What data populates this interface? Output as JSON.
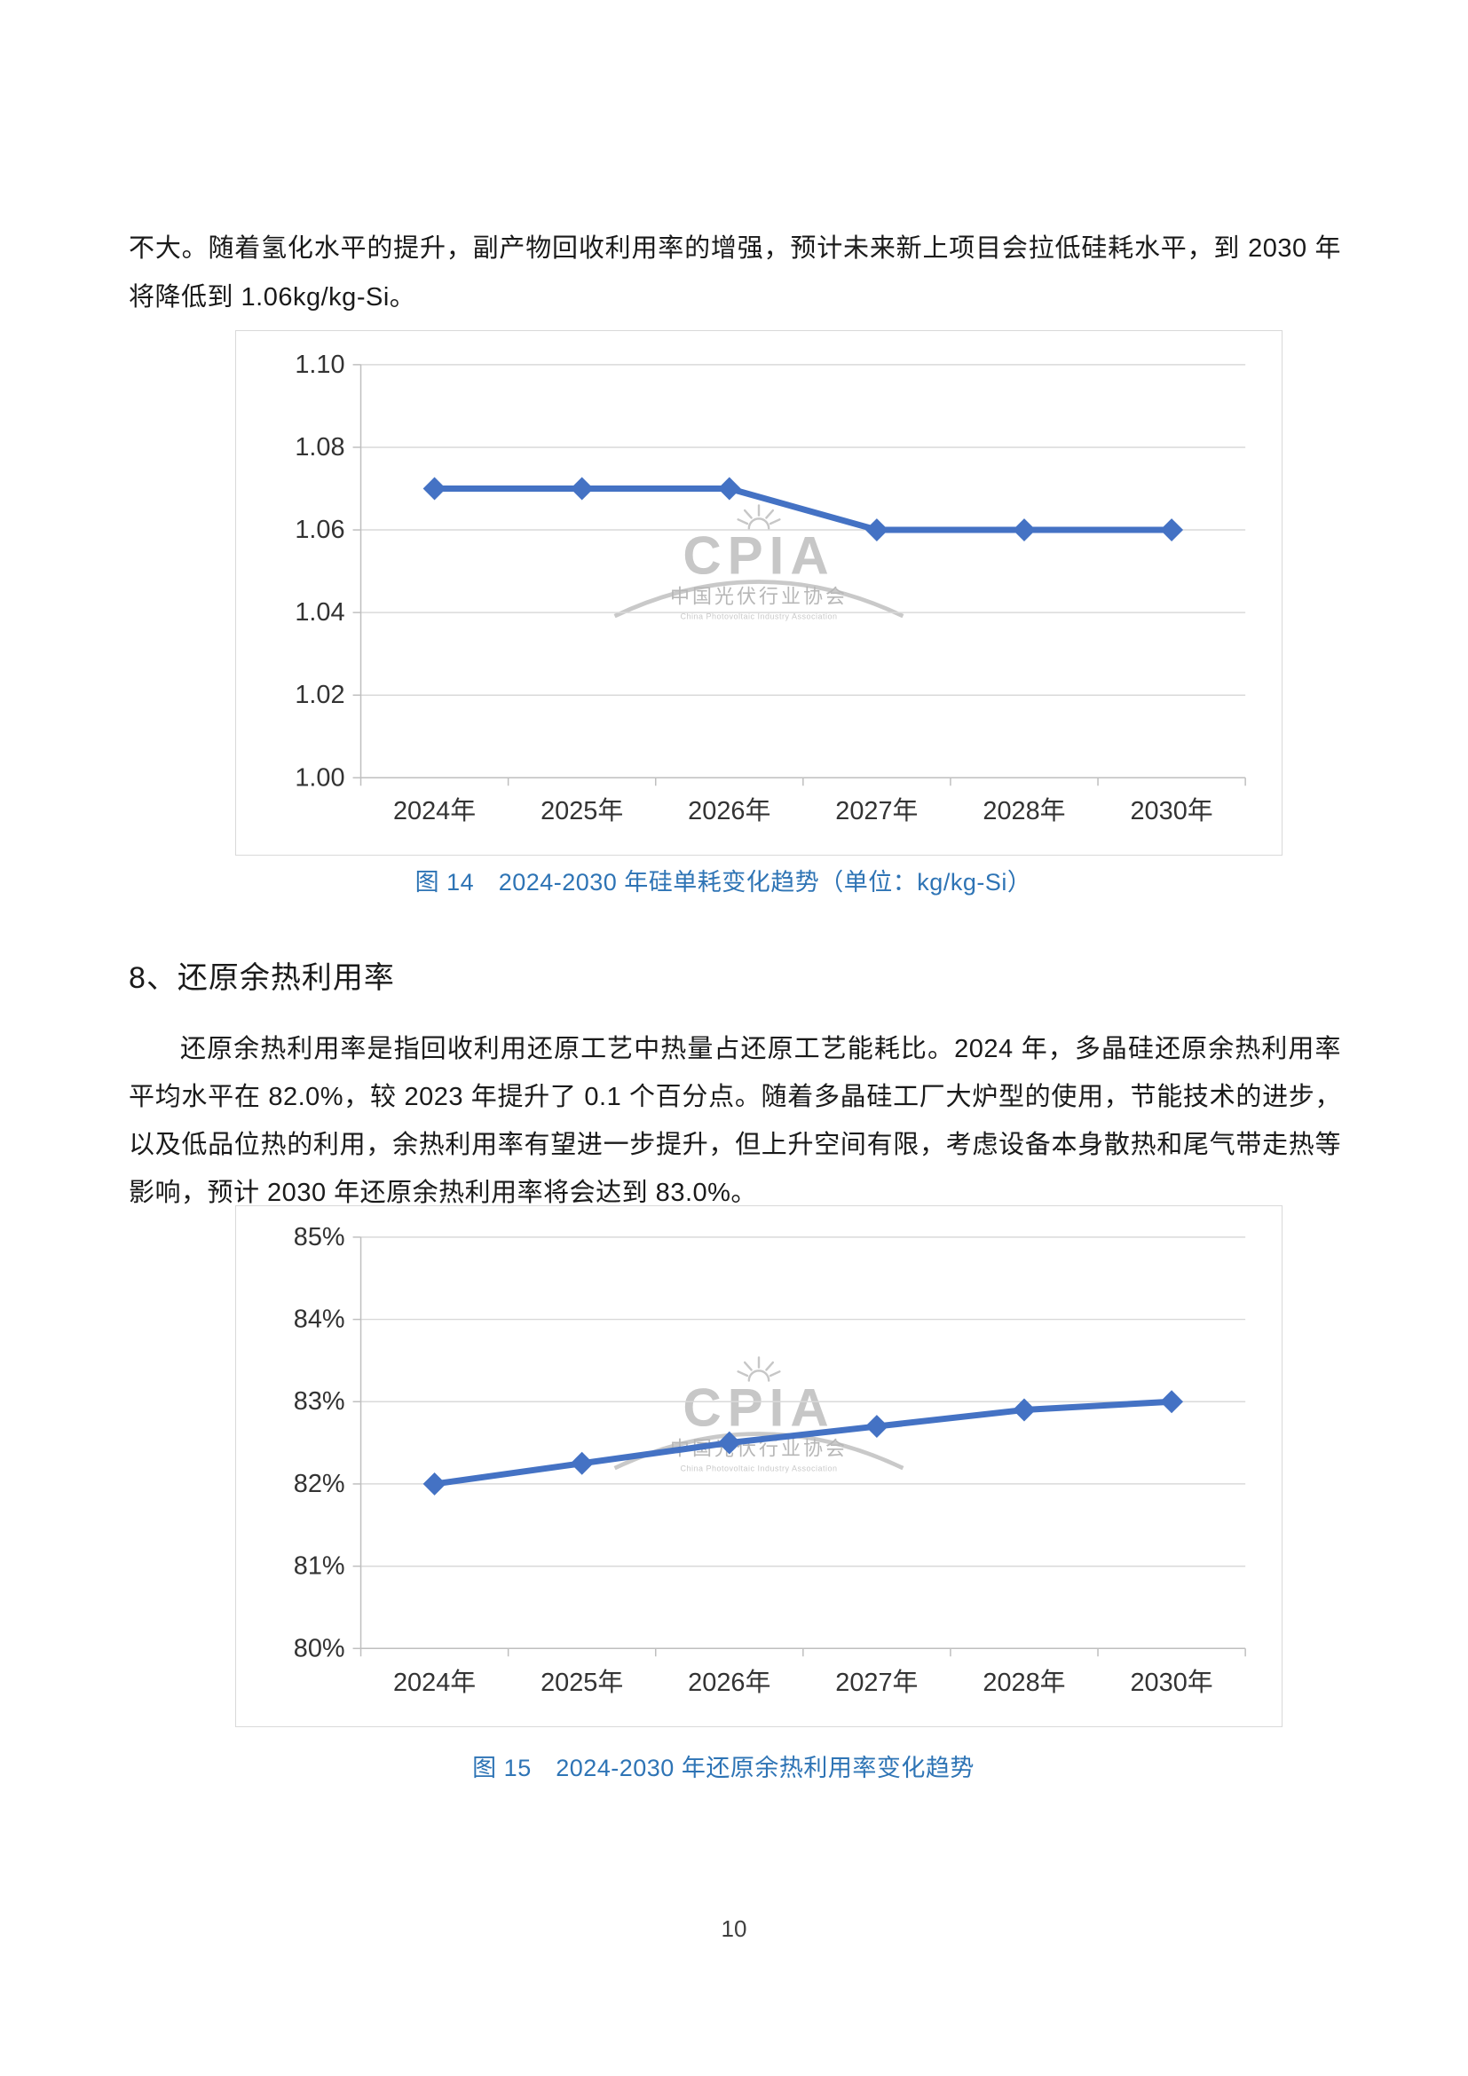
{
  "page": {
    "number": "10"
  },
  "content": {
    "para_continuation": "不大。随着氢化水平的提升，副产物回收利用率的增强，预计未来新上项目会拉低硅耗水平，到 2030 年将降低到 1.06kg/kg-Si。",
    "section_heading": "8、还原余热利用率",
    "section_paragraph": "还原余热利用率是指回收利用还原工艺中热量占还原工艺能耗比。2024 年，多晶硅还原余热利用率平均水平在 82.0%，较 2023 年提升了 0.1 个百分点。随着多晶硅工厂大炉型的使用，节能技术的进步，以及低品位热的利用，余热利用率有望进一步提升，但上升空间有限，考虑设备本身散热和尾气带走热等影响，预计 2030 年还原余热利用率将会达到 83.0%。"
  },
  "watermark": {
    "acronym": "CPIA",
    "name_cn": "中国光伏行业协会",
    "name_en": "China Photovoltaic Industry Association"
  },
  "chart_data": [
    {
      "type": "line",
      "title": "2024-2030 年硅单耗变化趋势",
      "caption": "图 14　2024-2030 年硅单耗变化趋势（单位：kg/kg-Si）",
      "unit": "kg/kg-Si",
      "categories": [
        "2024年",
        "2025年",
        "2026年",
        "2027年",
        "2028年",
        "2030年"
      ],
      "values": [
        1.07,
        1.07,
        1.07,
        1.06,
        1.06,
        1.06
      ],
      "ylim": [
        1.0,
        1.1
      ],
      "ytick_values": [
        1.0,
        1.02,
        1.04,
        1.06,
        1.08,
        1.1
      ],
      "ytick_labels": [
        "1.00",
        "1.02",
        "1.04",
        "1.06",
        "1.08",
        "1.10"
      ],
      "xlabel": "",
      "ylabel": "",
      "grid": true,
      "legend": "none",
      "marker": "diamond",
      "line_color": "#4472C4"
    },
    {
      "type": "line",
      "title": "2024-2030 年还原余热利用率变化趋势",
      "caption": "图 15　2024-2030 年还原余热利用率变化趋势",
      "unit": "%",
      "categories": [
        "2024年",
        "2025年",
        "2026年",
        "2027年",
        "2028年",
        "2030年"
      ],
      "values": [
        82.0,
        82.25,
        82.5,
        82.7,
        82.9,
        83.0
      ],
      "ylim": [
        80,
        85
      ],
      "ytick_values": [
        80,
        81,
        82,
        83,
        84,
        85
      ],
      "ytick_labels": [
        "80%",
        "81%",
        "82%",
        "83%",
        "84%",
        "85%"
      ],
      "xlabel": "",
      "ylabel": "",
      "grid": true,
      "legend": "none",
      "marker": "diamond",
      "line_color": "#4472C4"
    }
  ]
}
